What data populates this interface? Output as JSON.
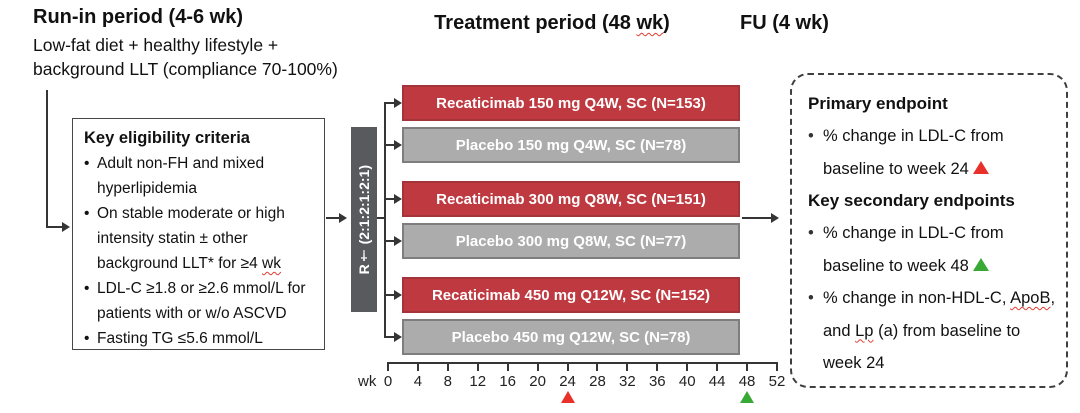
{
  "colors": {
    "barRed": "#be3a40",
    "barRedBorder": "#a5333a",
    "barGray": "#acacac",
    "barGrayBorder": "#7e7e7e",
    "randomizationBox": "#595a5e",
    "line": "#353535",
    "markerRed": "#e8312a",
    "markerGreen": "#39a935"
  },
  "headers": {
    "runin_title": "Run-in period (4-6 wk)",
    "runin_subtitle_line1": "Low-fat diet + healthy lifestyle +",
    "runin_subtitle_line2": "background LLT (compliance 70-100%)",
    "treatment_title_segments": [
      {
        "t": "Treatment period (48 "
      },
      {
        "t": "wk",
        "wavy": true
      },
      {
        "t": ")"
      }
    ],
    "fu_title": "FU (4 wk)"
  },
  "eligibility": {
    "title": "Key eligibility criteria",
    "bullets": [
      {
        "segments": [
          {
            "t": "Adult non-FH and mixed hyperlipidemia"
          }
        ]
      },
      {
        "segments": [
          {
            "t": "On stable moderate or high intensity statin ± other background LLT* for ≥4 "
          },
          {
            "t": "wk",
            "wavy": true
          }
        ]
      },
      {
        "segments": [
          {
            "t": "LDL-C ≥1.8 or ≥2.6 mmol/L for patients with or w/o ASCVD"
          }
        ]
      },
      {
        "segments": [
          {
            "t": "Fasting TG ≤5.6 mmol/L"
          }
        ]
      }
    ]
  },
  "randomization": {
    "label": "R† (2:1:2:1:2:1)"
  },
  "arms": [
    {
      "label": "Recaticimab 150 mg Q4W, SC (N=153)",
      "type": "active"
    },
    {
      "label": "Placebo 150 mg Q4W, SC (N=78)",
      "type": "placebo"
    },
    {
      "label": "Recaticimab 300 mg Q8W, SC (N=151)",
      "type": "active"
    },
    {
      "label": "Placebo 300 mg Q8W, SC (N=77)",
      "type": "placebo"
    },
    {
      "label": "Recaticimab 450 mg Q12W, SC (N=152)",
      "type": "active"
    },
    {
      "label": "Placebo 450 mg Q12W, SC (N=78)",
      "type": "placebo"
    }
  ],
  "axis": {
    "unit": "wk",
    "ticks": [
      "0",
      "4",
      "8",
      "12",
      "16",
      "20",
      "24",
      "28",
      "32",
      "36",
      "40",
      "44",
      "48",
      "52"
    ],
    "markers": [
      {
        "week": 24,
        "color": "#e8312a"
      },
      {
        "week": 48,
        "color": "#39a935"
      }
    ]
  },
  "endpoints": {
    "primary_title": "Primary endpoint",
    "primary_bullets": [
      {
        "segments": [
          {
            "t": "% change in LDL-C from baseline to week 24 "
          },
          {
            "tri": "#e8312a"
          }
        ]
      }
    ],
    "secondary_title": "Key secondary endpoints",
    "secondary_bullets": [
      {
        "segments": [
          {
            "t": "% change in LDL-C from baseline to week 48 "
          },
          {
            "tri": "#39a935"
          }
        ]
      },
      {
        "segments": [
          {
            "t": "% change in non-HDL-C, "
          },
          {
            "t": "ApoB",
            "wavy": true
          },
          {
            "t": ", and "
          },
          {
            "t": "Lp",
            "wavy": true
          },
          {
            "t": " (a) from baseline to week 24"
          }
        ]
      }
    ]
  }
}
